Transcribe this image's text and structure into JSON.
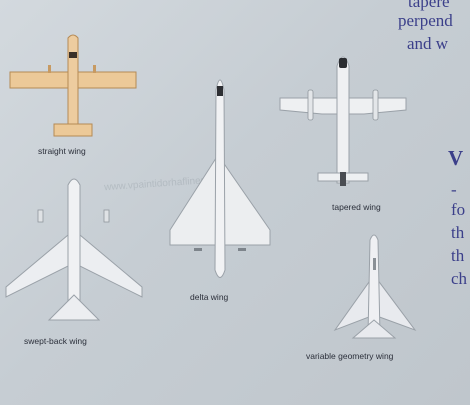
{
  "text_lines": {
    "line1": "tapere",
    "line2": "perpend",
    "line3": "and w",
    "heading": "V",
    "dash": "-",
    "line4": "fo",
    "line5": "th",
    "line6": "th",
    "line7": "ch"
  },
  "captions": {
    "straight": "straight wing",
    "tapered": "tapered wing",
    "delta": "delta wing",
    "swept": "swept-back wing",
    "variable": "variable geometry wing"
  },
  "watermark": "www.vpaintidorhaflines.com",
  "colors": {
    "text_blue": "#3b3f8a",
    "wood_plane": "#e9c99a",
    "silver_plane": "#e6e8ec"
  },
  "icons": {
    "straight": "straight-wing-plane-icon",
    "tapered": "tapered-wing-plane-icon",
    "delta": "delta-wing-plane-icon",
    "swept": "swept-back-wing-plane-icon",
    "variable": "variable-geometry-wing-plane-icon"
  }
}
